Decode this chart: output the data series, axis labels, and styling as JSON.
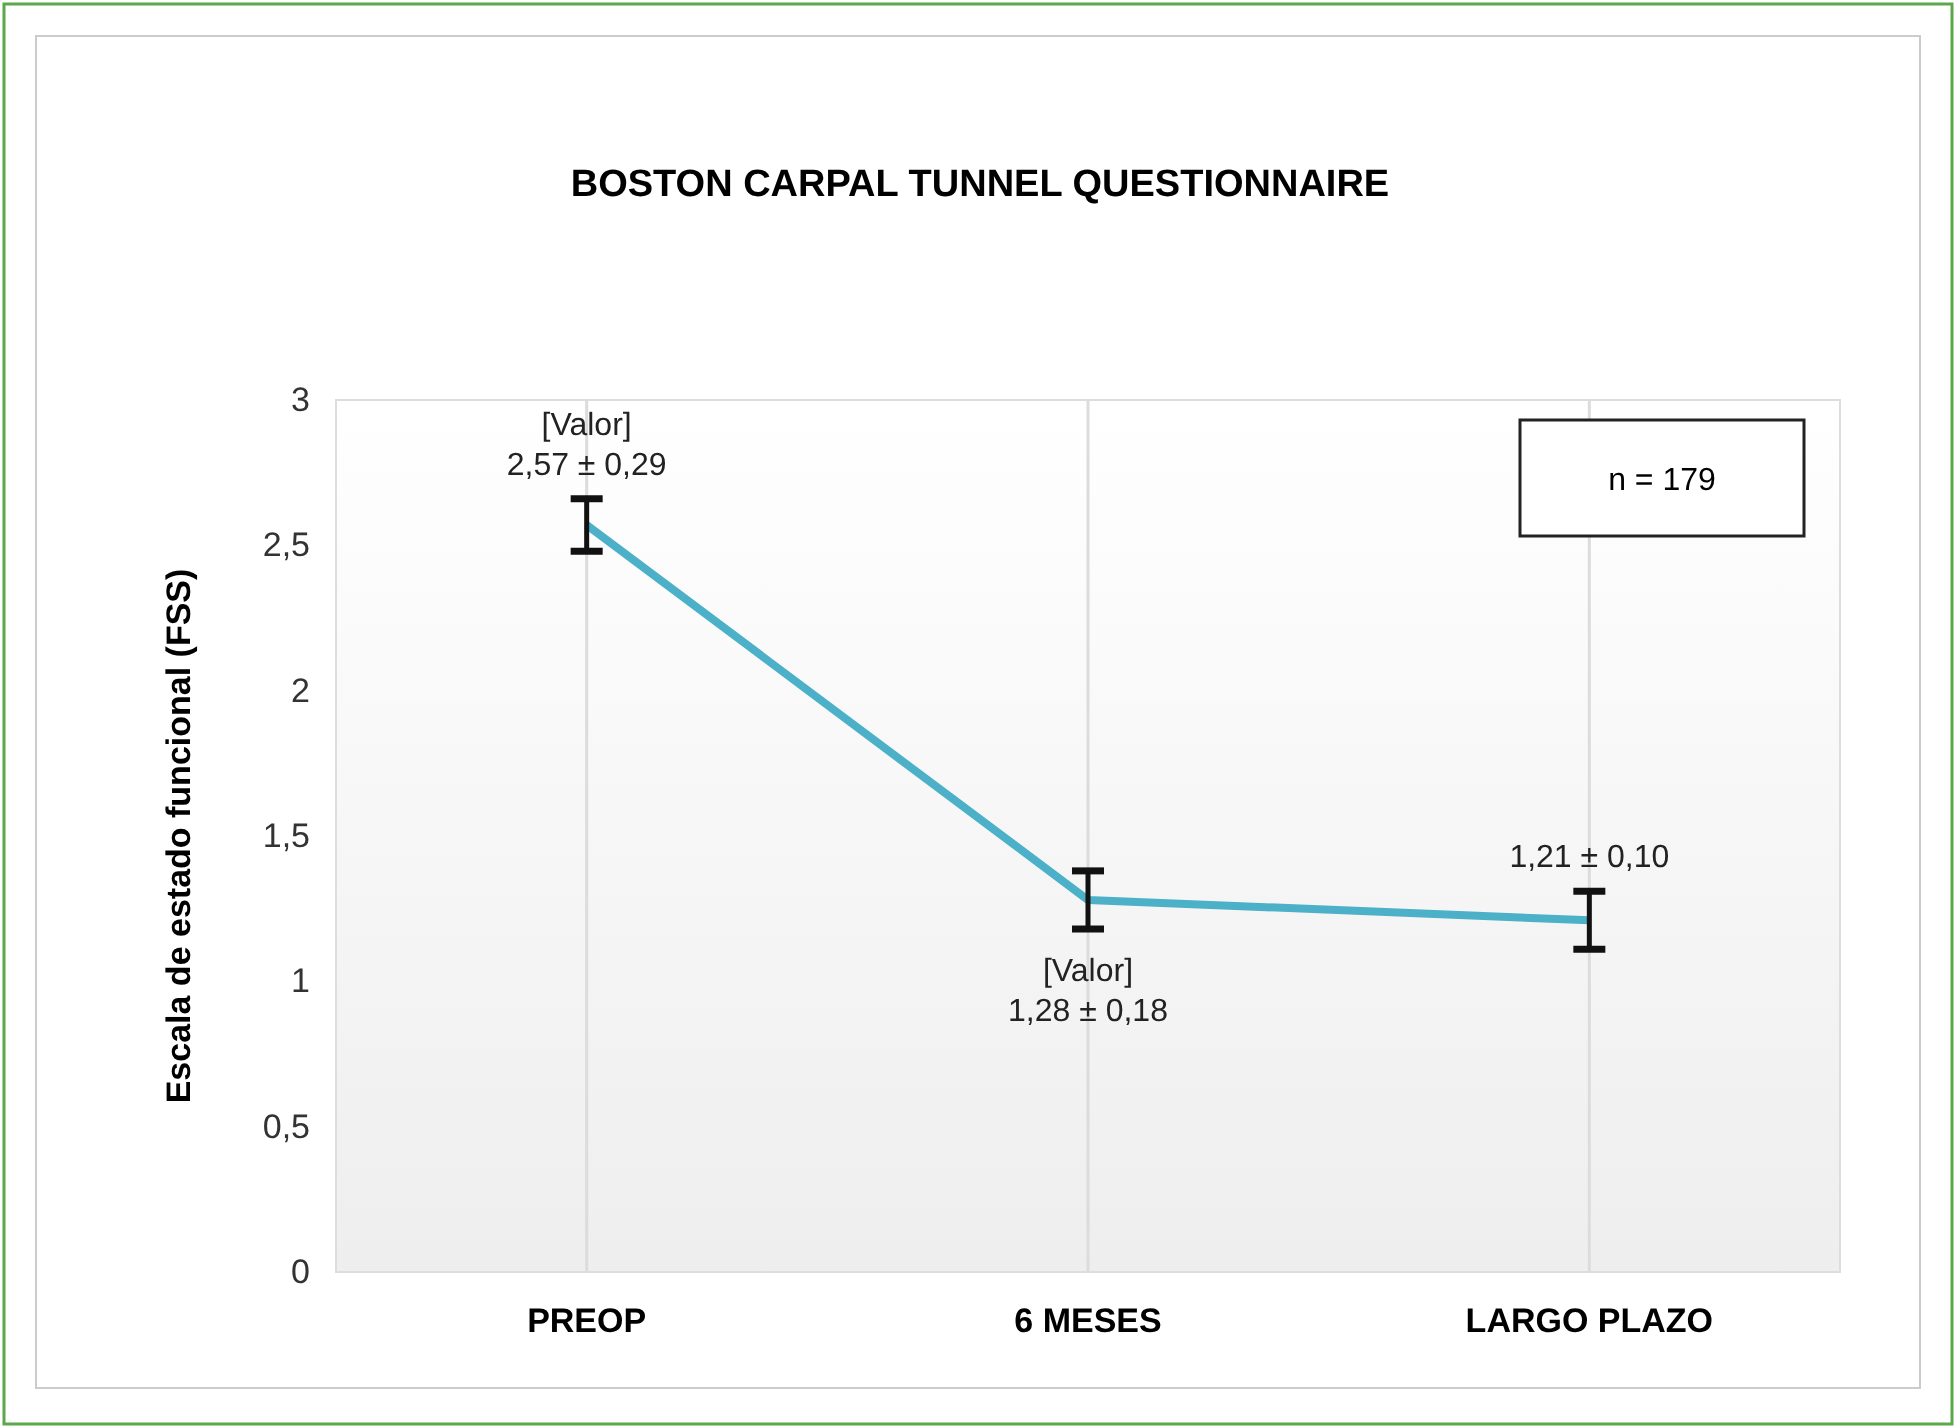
{
  "chart_data": {
    "type": "line",
    "title": "BOSTON CARPAL TUNNEL QUESTIONNAIRE",
    "ylabel": "Escala de estado funcional (FSS)",
    "categories": [
      "PREOP",
      "6 MESES",
      "LARGO PLAZO"
    ],
    "series": [
      {
        "color": "#4bb0c8",
        "values": [
          2.57,
          1.28,
          1.21
        ],
        "errors": [
          0.09,
          0.1,
          0.1
        ],
        "value_labels": [
          "[Valor]\n2,57 ± 0,29",
          "[Valor]\n1,28 ± 0,18",
          "1,21 ± 0,10"
        ]
      }
    ],
    "ylim": [
      0,
      3
    ],
    "yticks": [
      0,
      {
        "value": 0.5,
        "label": "0,5"
      },
      1,
      {
        "value": 1.5,
        "label": "1,5"
      },
      2,
      {
        "value": 2.5,
        "label": "2,5"
      },
      3
    ],
    "annotations": [
      "n = 179"
    ],
    "grid": "x",
    "marker": "none",
    "line_style": "solid"
  }
}
